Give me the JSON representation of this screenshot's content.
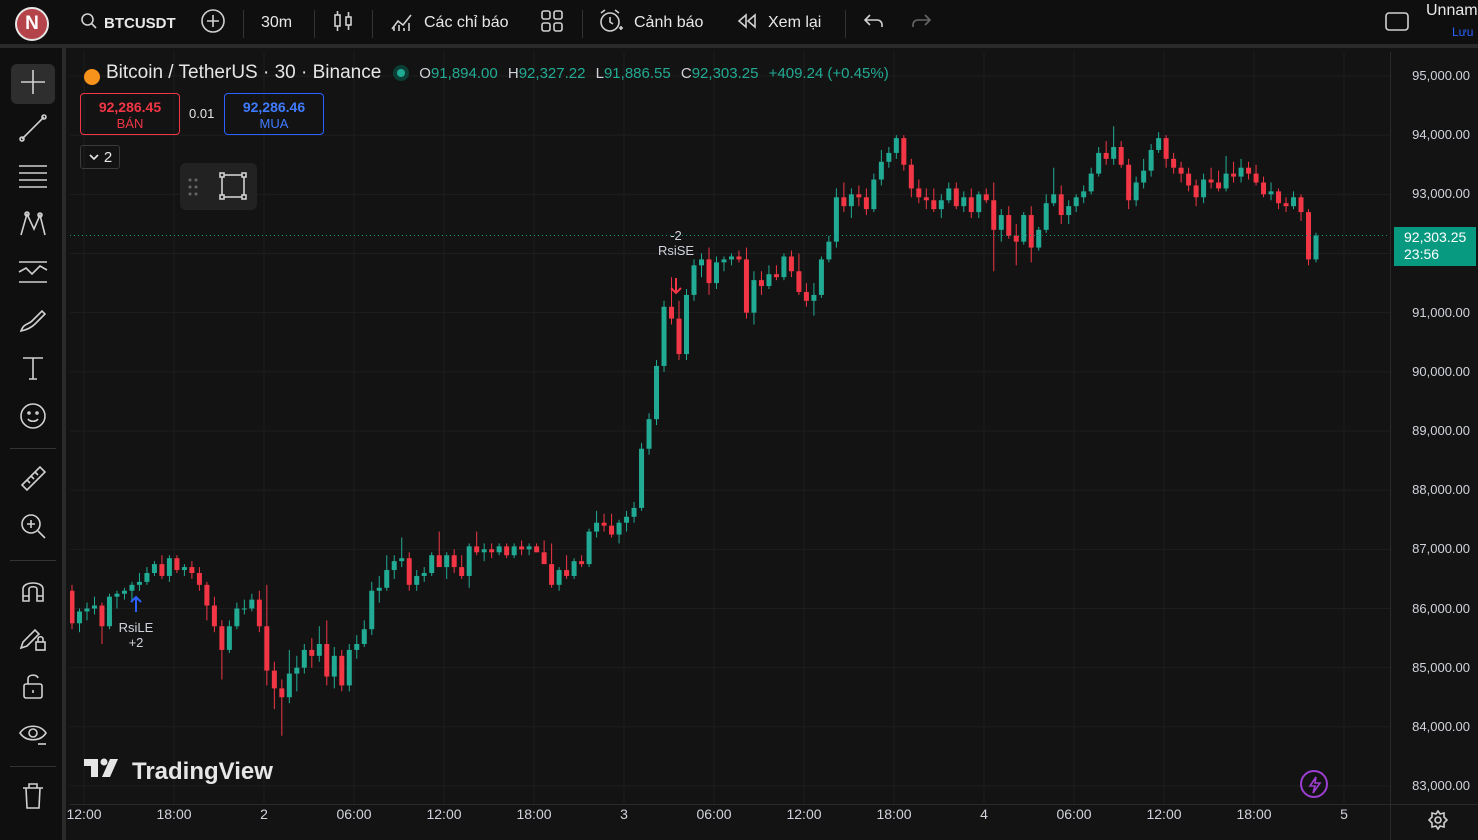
{
  "account": {
    "initial": "N"
  },
  "toolbar": {
    "symbol": "BTCUSDT",
    "interval": "30m",
    "indicators_label": "Các chỉ báo",
    "alerts_label": "Cảnh báo",
    "replay_label": "Xem lại",
    "layout_name": "Unnam",
    "save_label": "Lưu"
  },
  "legend": {
    "title": "Bitcoin / TetherUS · 30 · Binance",
    "o_label": "O",
    "o": "91,894.00",
    "h_label": "H",
    "h": "92,327.22",
    "l_label": "L",
    "l": "91,886.55",
    "c_label": "C",
    "c": "92,303.25",
    "change": "+409.24 (+0.45%)"
  },
  "trade": {
    "sell_price": "92,286.45",
    "sell_label": "BÁN",
    "spread": "0.01",
    "buy_price": "92,286.46",
    "buy_label": "MUA",
    "collapse_count": "2"
  },
  "price_axis": [
    "95,000.00",
    "94,000.00",
    "93,000.00",
    "92,000.00",
    "91,000.00",
    "90,000.00",
    "89,000.00",
    "88,000.00",
    "87,000.00",
    "86,000.00",
    "85,000.00",
    "84,000.00",
    "83,000.00"
  ],
  "current_price": {
    "value": "92,303.25",
    "countdown": "23:56"
  },
  "time_axis": [
    "12:00",
    "18:00",
    "2",
    "06:00",
    "12:00",
    "18:00",
    "3",
    "06:00",
    "12:00",
    "18:00",
    "4",
    "06:00",
    "12:00",
    "18:00",
    "5"
  ],
  "markers": {
    "long_label": "RsiLE",
    "long_qty": "+2",
    "short_label": "RsiSE",
    "short_qty": "-2"
  },
  "brand": {
    "name": "TradingView"
  },
  "colors": {
    "up": "#22ab94",
    "down": "#f23645",
    "current": "#089981",
    "buy": "#2962ff"
  },
  "chart_data": {
    "type": "candlestick",
    "symbol": "BTCUSDT",
    "interval": "30m",
    "ylim": [
      82750,
      95400
    ],
    "candles": [
      [
        86300,
        86400,
        85650,
        85750
      ],
      [
        85750,
        86000,
        85600,
        85950
      ],
      [
        85950,
        86100,
        85800,
        86000
      ],
      [
        86000,
        86200,
        85900,
        86050
      ],
      [
        86050,
        86100,
        85400,
        85700
      ],
      [
        85700,
        86250,
        85650,
        86200
      ],
      [
        86200,
        86300,
        86000,
        86250
      ],
      [
        86250,
        86350,
        86150,
        86300
      ],
      [
        86300,
        86450,
        86100,
        86400
      ],
      [
        86400,
        86600,
        86300,
        86450
      ],
      [
        86450,
        86700,
        86400,
        86600
      ],
      [
        86600,
        86800,
        86550,
        86750
      ],
      [
        86750,
        86900,
        86500,
        86550
      ],
      [
        86550,
        86900,
        86450,
        86850
      ],
      [
        86850,
        86900,
        86600,
        86650
      ],
      [
        86650,
        86750,
        86550,
        86700
      ],
      [
        86700,
        86800,
        86500,
        86600
      ],
      [
        86600,
        86700,
        86300,
        86400
      ],
      [
        86400,
        86450,
        85800,
        86050
      ],
      [
        86050,
        86200,
        85600,
        85700
      ],
      [
        85700,
        85800,
        84800,
        85300
      ],
      [
        85300,
        85800,
        85250,
        85700
      ],
      [
        85700,
        86100,
        85650,
        86000
      ],
      [
        86000,
        86150,
        85900,
        86000
      ],
      [
        86000,
        86250,
        85950,
        86150
      ],
      [
        86150,
        86300,
        85600,
        85700
      ],
      [
        85700,
        86400,
        84700,
        84950
      ],
      [
        84950,
        85100,
        84300,
        84650
      ],
      [
        84650,
        84800,
        83850,
        84500
      ],
      [
        84500,
        85300,
        84400,
        84900
      ],
      [
        84900,
        85200,
        84600,
        85000
      ],
      [
        85000,
        85400,
        84900,
        85300
      ],
      [
        85300,
        85500,
        85000,
        85200
      ],
      [
        85200,
        85700,
        85100,
        85400
      ],
      [
        85400,
        85800,
        84700,
        84850
      ],
      [
        84850,
        85350,
        84650,
        85200
      ],
      [
        85200,
        85300,
        84600,
        84700
      ],
      [
        84700,
        85400,
        84600,
        85300
      ],
      [
        85300,
        85550,
        85150,
        85400
      ],
      [
        85400,
        85800,
        85350,
        85650
      ],
      [
        85650,
        86450,
        85550,
        86300
      ],
      [
        86300,
        86550,
        86100,
        86350
      ],
      [
        86350,
        86900,
        86300,
        86650
      ],
      [
        86650,
        86900,
        86500,
        86800
      ],
      [
        86800,
        87200,
        86700,
        86850
      ],
      [
        86850,
        86950,
        86300,
        86400
      ],
      [
        86400,
        86650,
        86300,
        86550
      ],
      [
        86550,
        86700,
        86450,
        86600
      ],
      [
        86600,
        86950,
        86550,
        86900
      ],
      [
        86900,
        87300,
        86800,
        86700
      ],
      [
        86700,
        86950,
        86500,
        86900
      ],
      [
        86900,
        87000,
        86600,
        86700
      ],
      [
        86700,
        86900,
        86500,
        86550
      ],
      [
        86550,
        87100,
        86350,
        87050
      ],
      [
        87050,
        87300,
        86900,
        86950
      ],
      [
        86950,
        87100,
        86800,
        87000
      ],
      [
        87000,
        87100,
        86850,
        86950
      ],
      [
        86950,
        87100,
        86900,
        87050
      ],
      [
        87050,
        87100,
        86850,
        86900
      ],
      [
        86900,
        87100,
        86850,
        87050
      ],
      [
        87050,
        87150,
        86900,
        87000
      ],
      [
        87000,
        87100,
        86900,
        87050
      ],
      [
        87050,
        87100,
        86950,
        86950
      ],
      [
        86950,
        87150,
        86800,
        86750
      ],
      [
        86750,
        87100,
        86350,
        86400
      ],
      [
        86400,
        86700,
        86300,
        86650
      ],
      [
        86650,
        86900,
        86500,
        86550
      ],
      [
        86550,
        86850,
        86500,
        86800
      ],
      [
        86800,
        86900,
        86700,
        86750
      ],
      [
        86750,
        87350,
        86700,
        87300
      ],
      [
        87300,
        87650,
        87200,
        87450
      ],
      [
        87450,
        87600,
        87300,
        87400
      ],
      [
        87400,
        87600,
        87200,
        87250
      ],
      [
        87250,
        87500,
        87100,
        87450
      ],
      [
        87450,
        87650,
        87300,
        87550
      ],
      [
        87550,
        87800,
        87450,
        87700
      ],
      [
        87700,
        88800,
        87650,
        88700
      ],
      [
        88700,
        89300,
        88600,
        89200
      ],
      [
        89200,
        90200,
        89100,
        90100
      ],
      [
        90100,
        91200,
        90000,
        91100
      ],
      [
        91100,
        91600,
        90800,
        90900
      ],
      [
        90900,
        91200,
        90200,
        90300
      ],
      [
        90300,
        91400,
        90200,
        91300
      ],
      [
        91300,
        91900,
        91200,
        91800
      ],
      [
        91800,
        92000,
        91600,
        91900
      ],
      [
        91900,
        92100,
        91300,
        91500
      ],
      [
        91500,
        91950,
        91400,
        91850
      ],
      [
        91850,
        91950,
        91700,
        91900
      ],
      [
        91900,
        92000,
        91800,
        91950
      ],
      [
        91950,
        92050,
        91850,
        91900
      ],
      [
        91900,
        92100,
        90900,
        91000
      ],
      [
        91000,
        91700,
        90800,
        91550
      ],
      [
        91550,
        91700,
        91300,
        91450
      ],
      [
        91450,
        91800,
        91400,
        91650
      ],
      [
        91650,
        91800,
        91550,
        91600
      ],
      [
        91600,
        92000,
        91550,
        91950
      ],
      [
        91950,
        92050,
        91600,
        91700
      ],
      [
        91700,
        92000,
        91300,
        91350
      ],
      [
        91350,
        91500,
        91100,
        91200
      ],
      [
        91200,
        91500,
        90950,
        91300
      ],
      [
        91300,
        91950,
        91250,
        91900
      ],
      [
        91900,
        92300,
        91850,
        92200
      ],
      [
        92200,
        93100,
        92100,
        92950
      ],
      [
        92950,
        93200,
        92700,
        92800
      ],
      [
        92800,
        93100,
        92600,
        93000
      ],
      [
        93000,
        93150,
        92800,
        92950
      ],
      [
        92950,
        93100,
        92650,
        92750
      ],
      [
        92750,
        93350,
        92700,
        93250
      ],
      [
        93250,
        93750,
        93150,
        93550
      ],
      [
        93550,
        93800,
        93450,
        93700
      ],
      [
        93700,
        94000,
        93600,
        93950
      ],
      [
        93950,
        94000,
        93400,
        93500
      ],
      [
        93500,
        93600,
        92950,
        93100
      ],
      [
        93100,
        93250,
        92850,
        92950
      ],
      [
        92950,
        93100,
        92750,
        92900
      ],
      [
        92900,
        93100,
        92700,
        92750
      ],
      [
        92750,
        93000,
        92600,
        92900
      ],
      [
        92900,
        93200,
        92850,
        93100
      ],
      [
        93100,
        93200,
        92750,
        92800
      ],
      [
        92800,
        93050,
        92700,
        92950
      ],
      [
        92950,
        93100,
        92600,
        92700
      ],
      [
        92700,
        93050,
        92600,
        93000
      ],
      [
        93000,
        93100,
        92850,
        92900
      ],
      [
        92900,
        93200,
        91700,
        92400
      ],
      [
        92400,
        92750,
        92200,
        92650
      ],
      [
        92650,
        92800,
        92250,
        92300
      ],
      [
        92300,
        92500,
        91800,
        92200
      ],
      [
        92200,
        92700,
        92150,
        92650
      ],
      [
        92650,
        92800,
        91850,
        92100
      ],
      [
        92100,
        92450,
        92050,
        92400
      ],
      [
        92400,
        93000,
        92350,
        92850
      ],
      [
        92850,
        93450,
        92800,
        93000
      ],
      [
        93000,
        93150,
        92500,
        92650
      ],
      [
        92650,
        92900,
        92500,
        92800
      ],
      [
        92800,
        93000,
        92700,
        92950
      ],
      [
        92950,
        93150,
        92850,
        93050
      ],
      [
        93050,
        93450,
        93000,
        93350
      ],
      [
        93350,
        93800,
        93300,
        93700
      ],
      [
        93700,
        93900,
        93500,
        93600
      ],
      [
        93600,
        94150,
        93500,
        93800
      ],
      [
        93800,
        93900,
        93450,
        93500
      ],
      [
        93500,
        93600,
        92750,
        92900
      ],
      [
        92900,
        93300,
        92800,
        93200
      ],
      [
        93200,
        93600,
        93100,
        93400
      ],
      [
        93400,
        93850,
        93300,
        93750
      ],
      [
        93750,
        94050,
        93700,
        93950
      ],
      [
        93950,
        94000,
        93450,
        93600
      ],
      [
        93600,
        93700,
        93350,
        93450
      ],
      [
        93450,
        93550,
        93200,
        93350
      ],
      [
        93350,
        93450,
        93050,
        93150
      ],
      [
        93150,
        93250,
        92800,
        92950
      ],
      [
        92950,
        93350,
        92850,
        93250
      ],
      [
        93250,
        93450,
        93100,
        93200
      ],
      [
        93200,
        93400,
        93050,
        93100
      ],
      [
        93100,
        93650,
        93050,
        93350
      ],
      [
        93350,
        93550,
        93200,
        93300
      ],
      [
        93300,
        93600,
        93200,
        93450
      ],
      [
        93450,
        93550,
        93250,
        93350
      ],
      [
        93350,
        93500,
        93150,
        93200
      ],
      [
        93200,
        93300,
        92950,
        93000
      ],
      [
        93000,
        93200,
        92900,
        93050
      ],
      [
        93050,
        93100,
        92750,
        92850
      ],
      [
        92850,
        92950,
        92700,
        92800
      ],
      [
        92800,
        93050,
        92750,
        92950
      ],
      [
        92950,
        93000,
        92550,
        92700
      ],
      [
        92700,
        92750,
        91800,
        91900
      ],
      [
        91900,
        92350,
        91850,
        92303.25
      ]
    ],
    "markers": [
      {
        "type": "long",
        "label": "RsiLE",
        "qty": "+2"
      },
      {
        "type": "short",
        "label": "RsiSE",
        "qty": "-2"
      }
    ],
    "last_price": 92303.25
  }
}
